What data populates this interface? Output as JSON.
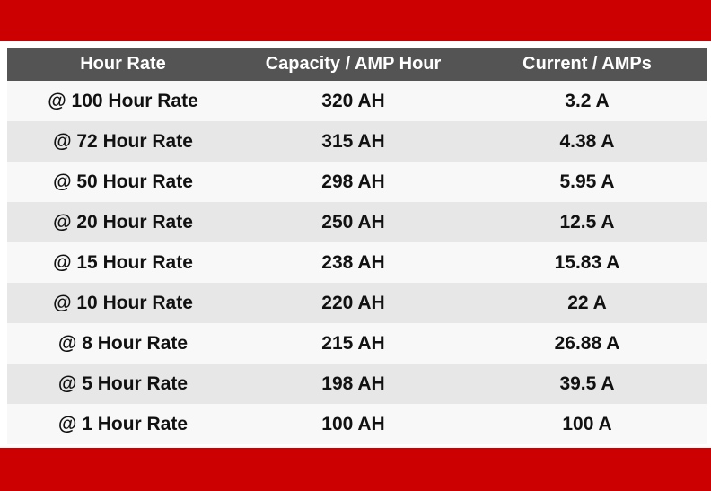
{
  "colors": {
    "band": "#cc0000",
    "header_bg": "#545454",
    "row_light": "#f8f8f8",
    "row_dark": "#e7e7e7"
  },
  "table": {
    "headers": [
      "Hour Rate",
      "Capacity / AMP Hour",
      "Current / AMPs"
    ],
    "rows": [
      [
        "@ 100 Hour Rate",
        "320 AH",
        "3.2 A"
      ],
      [
        "@ 72 Hour Rate",
        "315 AH",
        "4.38 A"
      ],
      [
        "@ 50 Hour Rate",
        "298 AH",
        "5.95 A"
      ],
      [
        "@ 20 Hour Rate",
        "250 AH",
        "12.5 A"
      ],
      [
        "@ 15 Hour Rate",
        "238 AH",
        "15.83 A"
      ],
      [
        "@ 10 Hour Rate",
        "220 AH",
        "22 A"
      ],
      [
        "@ 8 Hour Rate",
        "215 AH",
        "26.88 A"
      ],
      [
        "@ 5 Hour Rate",
        "198 AH",
        "39.5 A"
      ],
      [
        "@ 1 Hour Rate",
        "100 AH",
        "100 A"
      ]
    ]
  }
}
